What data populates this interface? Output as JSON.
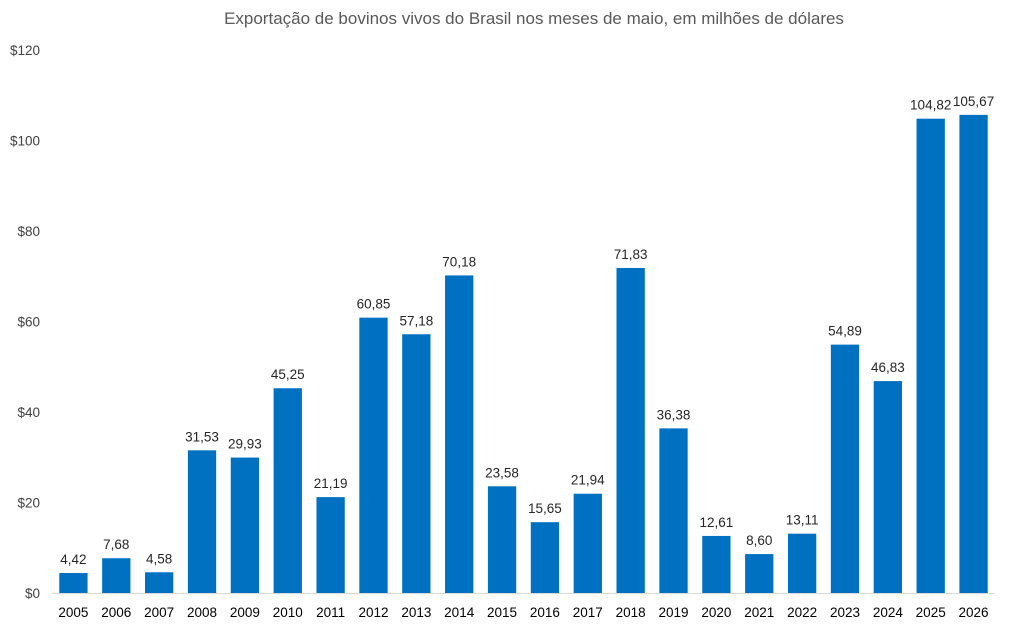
{
  "chart_data": {
    "type": "bar",
    "title": "Exportação de bovinos vivos do Brasil nos meses de maio, em milhões de dólares",
    "xlabel": "",
    "ylabel": "",
    "categories": [
      "2005",
      "2006",
      "2007",
      "2008",
      "2009",
      "2010",
      "2011",
      "2012",
      "2013",
      "2014",
      "2015",
      "2016",
      "2017",
      "2018",
      "2019",
      "2020",
      "2021",
      "2022",
      "2023",
      "2024",
      "2025",
      "2026"
    ],
    "values": [
      4.42,
      7.68,
      4.58,
      31.53,
      29.93,
      45.25,
      21.19,
      60.85,
      57.18,
      70.18,
      23.58,
      15.65,
      21.94,
      71.83,
      36.38,
      12.61,
      8.6,
      13.11,
      54.89,
      46.83,
      104.82,
      105.67
    ],
    "data_labels": [
      "4,42",
      "7,68",
      "4,58",
      "31,53",
      "29,93",
      "45,25",
      "21,19",
      "60,85",
      "57,18",
      "70,18",
      "23,58",
      "15,65",
      "21,94",
      "71,83",
      "36,38",
      "12,61",
      "8,60",
      "13,11",
      "54,89",
      "46,83",
      "104,82",
      "105,67"
    ],
    "ylim": [
      0,
      120
    ],
    "y_ticks": [
      0,
      20,
      40,
      60,
      80,
      100,
      120
    ],
    "y_tick_labels": [
      "$0",
      "$20",
      "$40",
      "$60",
      "$80",
      "$100",
      "$120"
    ],
    "bar_color": "#0070C0",
    "grid": false,
    "legend": "none"
  }
}
